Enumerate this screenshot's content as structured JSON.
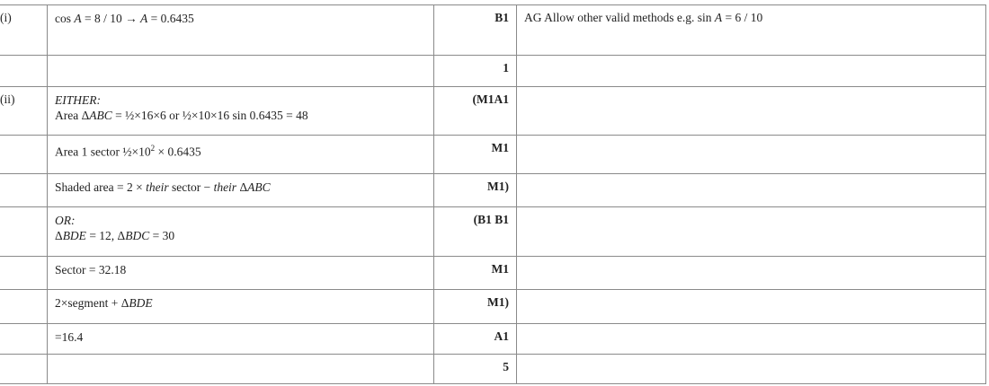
{
  "rows": [
    {
      "part": "(i)",
      "lines": [
        [
          {
            "t": "cos "
          },
          {
            "t": "A",
            "i": true
          },
          {
            "t": " = 8 / 10  →  "
          },
          {
            "t": "A",
            "i": true
          },
          {
            "t": " = 0.6435"
          }
        ]
      ],
      "mark": "B1",
      "guidance": [
        {
          "t": "AG  Allow other valid methods e.g.  sin "
        },
        {
          "t": "A",
          "i": true
        },
        {
          "t": " = 6 / 10"
        }
      ],
      "h": 56
    },
    {
      "part": "",
      "lines": [],
      "mark": "1",
      "guidance": [],
      "h": 35
    },
    {
      "part": "(ii)",
      "lines": [
        [
          {
            "t": "EITHER:",
            "i": true
          }
        ],
        [
          {
            "t": "Area  Δ"
          },
          {
            "t": "ABC",
            "i": true
          },
          {
            "t": " = ½×16×6   or   ½×10×16 sin 0.6435 = 48"
          }
        ]
      ],
      "mark": "(M1A1",
      "guidance": [],
      "h": 54
    },
    {
      "part": "",
      "lines": [
        [
          {
            "t": "Area 1 sector  ½×10"
          },
          {
            "t": "2",
            "sup": true
          },
          {
            "t": " × 0.6435"
          }
        ]
      ],
      "mark": "M1",
      "guidance": [],
      "h": 43
    },
    {
      "part": "",
      "lines": [
        [
          {
            "t": "Shaded area  = 2 × "
          },
          {
            "t": "their",
            "i": true
          },
          {
            "t": " sector − "
          },
          {
            "t": "their",
            "i": true
          },
          {
            "t": " Δ"
          },
          {
            "t": "ABC",
            "i": true
          }
        ]
      ],
      "mark": "M1)",
      "guidance": [],
      "h": 37
    },
    {
      "part": "",
      "lines": [
        [
          {
            "t": "OR:",
            "i": true
          }
        ],
        [
          {
            "t": "Δ"
          },
          {
            "t": "BDE",
            "i": true
          },
          {
            "t": " = 12,  Δ"
          },
          {
            "t": "BDC",
            "i": true
          },
          {
            "t": " = 30"
          }
        ]
      ],
      "mark": "(B1 B1",
      "guidance": [],
      "h": 55
    },
    {
      "part": "",
      "lines": [
        [
          {
            "t": "Sector = 32.18"
          }
        ]
      ],
      "mark": "M1",
      "guidance": [],
      "h": 37
    },
    {
      "part": "",
      "lines": [
        [
          {
            "t": "2×segment +  Δ"
          },
          {
            "t": "BDE",
            "i": true
          }
        ]
      ],
      "mark": "M1)",
      "guidance": [],
      "h": 38
    },
    {
      "part": "",
      "lines": [
        [
          {
            "t": "=16.4"
          }
        ]
      ],
      "mark": "A1",
      "guidance": [],
      "h": 34
    },
    {
      "part": "",
      "lines": [],
      "mark": "5",
      "guidance": [],
      "h": 34
    }
  ]
}
